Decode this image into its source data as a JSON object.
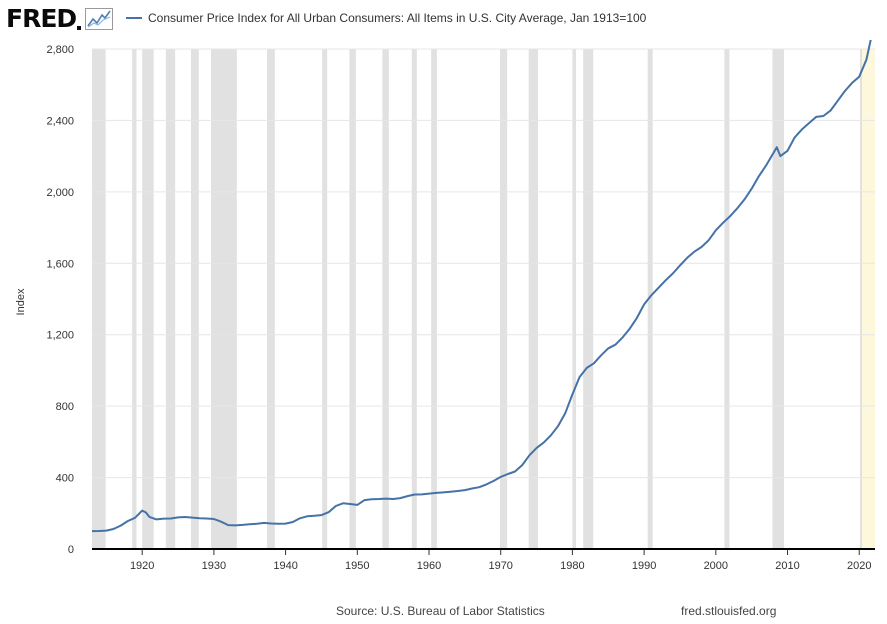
{
  "header": {
    "logo_text": "FRED",
    "series_label": "Consumer Price Index for All Urban Consumers: All Items in U.S. City Average, Jan 1913=100"
  },
  "footer": {
    "source": "Source: U.S. Bureau of Labor Statistics",
    "url": "fred.stlouisfed.org"
  },
  "colors": {
    "line": "#4572a7",
    "recession": "#e1e1e1",
    "highlight": "#fdf8dc",
    "grid": "#e6e6e6",
    "axis": "#000000"
  },
  "chart_data": {
    "type": "line",
    "title": "Consumer Price Index for All Urban Consumers: All Items in U.S. City Average, Jan 1913=100",
    "xlabel": "",
    "ylabel": "Index",
    "xlim": [
      1913,
      2022.2
    ],
    "ylim": [
      0,
      2800
    ],
    "y_ticks": [
      0,
      400,
      800,
      1200,
      1600,
      2000,
      2400,
      2800
    ],
    "y_tick_labels": [
      "0",
      "400",
      "800",
      "1,200",
      "1,600",
      "2,000",
      "2,400",
      "2,800"
    ],
    "x_ticks": [
      1920,
      1930,
      1940,
      1950,
      1960,
      1970,
      1980,
      1990,
      2000,
      2010,
      2020
    ],
    "x_tick_labels": [
      "1920",
      "1930",
      "1940",
      "1950",
      "1960",
      "1970",
      "1980",
      "1990",
      "2000",
      "2010",
      "2020"
    ],
    "recessions": [
      [
        1913.0,
        1914.9
      ],
      [
        1918.6,
        1919.2
      ],
      [
        1920.0,
        1921.6
      ],
      [
        1923.3,
        1924.6
      ],
      [
        1926.8,
        1927.9
      ],
      [
        1929.6,
        1933.2
      ],
      [
        1937.4,
        1938.5
      ],
      [
        1945.1,
        1945.8
      ],
      [
        1948.9,
        1949.8
      ],
      [
        1953.5,
        1954.4
      ],
      [
        1957.6,
        1958.3
      ],
      [
        1960.3,
        1961.1
      ],
      [
        1969.9,
        1970.9
      ],
      [
        1973.9,
        1975.2
      ],
      [
        1980.0,
        1980.5
      ],
      [
        1981.5,
        1982.9
      ],
      [
        1990.5,
        1991.2
      ],
      [
        2001.2,
        2001.9
      ],
      [
        2007.9,
        2009.5
      ],
      [
        2020.1,
        2020.4
      ]
    ],
    "highlight_range": [
      2020.4,
      2022.2
    ],
    "series": [
      {
        "name": "Consumer Price Index for All Urban Consumers: All Items in U.S. City Average, Jan 1913=100",
        "x": [
          1913,
          1914,
          1915,
          1916,
          1917,
          1918,
          1919,
          1920,
          1920.5,
          1921,
          1922,
          1923,
          1924,
          1925,
          1926,
          1927,
          1928,
          1929,
          1930,
          1931,
          1932,
          1933,
          1934,
          1935,
          1936,
          1937,
          1938,
          1939,
          1940,
          1941,
          1942,
          1943,
          1944,
          1945,
          1946,
          1947,
          1948,
          1949,
          1950,
          1951,
          1952,
          1953,
          1954,
          1955,
          1956,
          1957,
          1958,
          1959,
          1960,
          1961,
          1962,
          1963,
          1964,
          1965,
          1966,
          1967,
          1968,
          1969,
          1970,
          1971,
          1972,
          1973,
          1974,
          1975,
          1976,
          1977,
          1978,
          1979,
          1980,
          1981,
          1982,
          1983,
          1984,
          1985,
          1986,
          1987,
          1988,
          1989,
          1990,
          1991,
          1992,
          1993,
          1994,
          1995,
          1996,
          1997,
          1998,
          1999,
          2000,
          2001,
          2002,
          2003,
          2004,
          2005,
          2006,
          2007,
          2008.5,
          2009,
          2010,
          2011,
          2012,
          2013,
          2014,
          2015,
          2016,
          2017,
          2018,
          2019,
          2020,
          2021,
          2022
        ],
        "values": [
          100,
          101,
          103,
          112,
          131,
          157,
          175,
          215,
          205,
          180,
          166,
          170,
          171,
          177,
          179,
          176,
          172,
          171,
          168,
          153,
          134,
          132,
          135,
          139,
          141,
          146,
          143,
          141,
          142,
          151,
          172,
          183,
          186,
          190,
          206,
          241,
          256,
          252,
          247,
          274,
          279,
          280,
          282,
          280,
          285,
          296,
          305,
          306,
          310,
          314,
          317,
          321,
          325,
          330,
          339,
          346,
          362,
          381,
          404,
          420,
          434,
          470,
          525,
          566,
          596,
          637,
          689,
          760,
          866,
          963,
          1014,
          1040,
          1085,
          1124,
          1144,
          1185,
          1234,
          1294,
          1370,
          1421,
          1463,
          1505,
          1543,
          1588,
          1630,
          1665,
          1691,
          1729,
          1785,
          1827,
          1864,
          1908,
          1958,
          2018,
          2087,
          2147,
          2250,
          2200,
          2230,
          2305,
          2350,
          2385,
          2420,
          2425,
          2455,
          2510,
          2565,
          2610,
          2645,
          2740,
          2925
        ]
      }
    ]
  }
}
